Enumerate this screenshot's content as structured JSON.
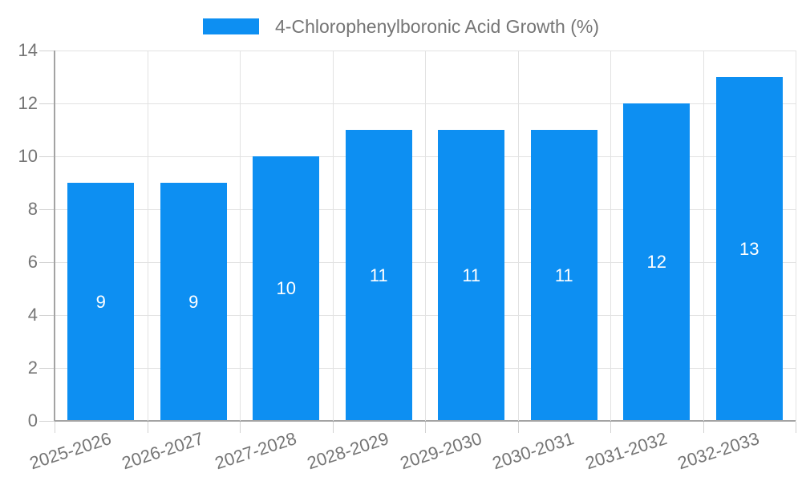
{
  "chart_data": {
    "type": "bar",
    "title": "4-Chlorophenylboronic Acid Growth (%)",
    "categories": [
      "2025-2026",
      "2026-2027",
      "2027-2028",
      "2028-2029",
      "2029-2030",
      "2030-2031",
      "2031-2032",
      "2032-2033"
    ],
    "values": [
      9,
      9,
      10,
      11,
      11,
      11,
      12,
      13
    ],
    "xlabel": "",
    "ylabel": "",
    "ylim": [
      0,
      14
    ],
    "yticks": [
      0,
      2,
      4,
      6,
      8,
      10,
      12,
      14
    ],
    "grid": true,
    "legend_position": "top",
    "colors": {
      "bar": "#0d8ff2",
      "bar_value_label": "#ffffff",
      "axis_text": "#757575",
      "grid": "#e2e2e2",
      "axis_line": "#a3a3a3",
      "tick": "#d2d2d2"
    }
  }
}
